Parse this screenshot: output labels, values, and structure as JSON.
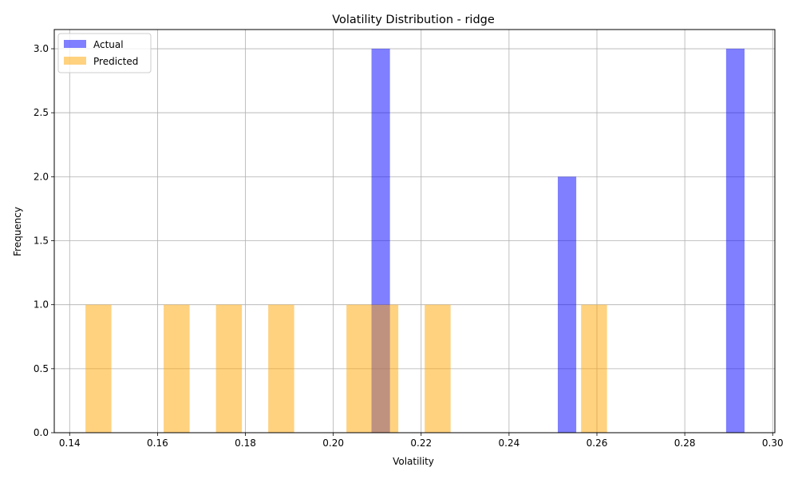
{
  "chart_data": {
    "type": "bar",
    "title": "Volatility Distribution - ridge",
    "xlabel": "Volatility",
    "ylabel": "Frequency",
    "xlim": [
      0.1365,
      0.3005
    ],
    "ylim": [
      0,
      3.15
    ],
    "xticks": [
      0.14,
      0.16,
      0.18,
      0.2,
      0.22,
      0.24,
      0.26,
      0.28,
      0.3
    ],
    "xtick_labels": [
      "0.14",
      "0.16",
      "0.18",
      "0.20",
      "0.22",
      "0.24",
      "0.26",
      "0.28",
      "0.30"
    ],
    "yticks": [
      0.0,
      0.5,
      1.0,
      1.5,
      2.0,
      2.5,
      3.0
    ],
    "ytick_labels": [
      "0.0",
      "0.5",
      "1.0",
      "1.5",
      "2.0",
      "2.5",
      "3.0"
    ],
    "grid": true,
    "legend": "top-left",
    "series": [
      {
        "name": "Actual",
        "color": "#0000ff",
        "opacity": 0.5,
        "bins": [
          {
            "x0": 0.2087,
            "x1": 0.2129,
            "count": 3
          },
          {
            "x0": 0.2511,
            "x1": 0.2553,
            "count": 2
          },
          {
            "x0": 0.2894,
            "x1": 0.2936,
            "count": 3
          }
        ]
      },
      {
        "name": "Predicted",
        "color": "#ffa500",
        "opacity": 0.5,
        "bins": [
          {
            "x0": 0.1436,
            "x1": 0.1495,
            "count": 1
          },
          {
            "x0": 0.1614,
            "x1": 0.1673,
            "count": 1
          },
          {
            "x0": 0.1733,
            "x1": 0.1792,
            "count": 1
          },
          {
            "x0": 0.1852,
            "x1": 0.1911,
            "count": 1
          },
          {
            "x0": 0.203,
            "x1": 0.2089,
            "count": 1
          },
          {
            "x0": 0.2089,
            "x1": 0.2148,
            "count": 1
          },
          {
            "x0": 0.2208,
            "x1": 0.2267,
            "count": 1
          },
          {
            "x0": 0.2564,
            "x1": 0.2623,
            "count": 1
          }
        ]
      }
    ]
  }
}
